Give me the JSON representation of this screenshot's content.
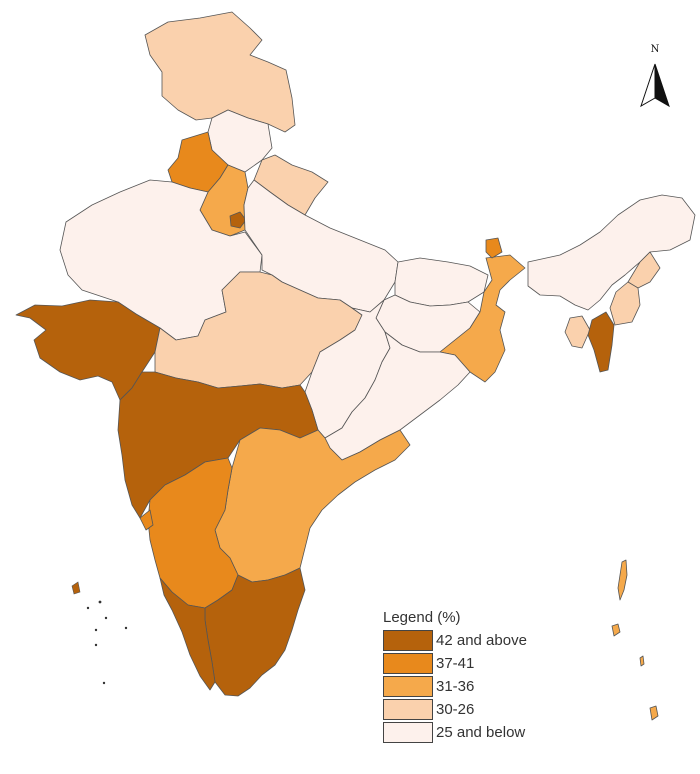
{
  "legend": {
    "title": "Legend (%)",
    "items": [
      {
        "label": "42 and above",
        "color": "#b5620c"
      },
      {
        "label": "37-41",
        "color": "#e8891c"
      },
      {
        "label": "31-36",
        "color": "#f5a94b"
      },
      {
        "label": "30-26",
        "color": "#fad1ad"
      },
      {
        "label": "25 and below",
        "color": "#fdf1ec"
      }
    ]
  },
  "north_arrow": {
    "letter": "N"
  },
  "regions": [
    {
      "name": "jammu-kashmir",
      "category": "30-26"
    },
    {
      "name": "himachal-pradesh",
      "category": "25 and below"
    },
    {
      "name": "punjab",
      "category": "37-41"
    },
    {
      "name": "uttarakhand",
      "category": "30-26"
    },
    {
      "name": "haryana",
      "category": "31-36"
    },
    {
      "name": "delhi",
      "category": "42 and above"
    },
    {
      "name": "rajasthan",
      "category": "25 and below"
    },
    {
      "name": "uttar-pradesh",
      "category": "25 and below"
    },
    {
      "name": "bihar",
      "category": "25 and below"
    },
    {
      "name": "sikkim",
      "category": "37-41"
    },
    {
      "name": "northeast",
      "category": "25 and below"
    },
    {
      "name": "nagaland",
      "category": "30-26"
    },
    {
      "name": "manipur",
      "category": "30-26"
    },
    {
      "name": "tripura",
      "category": "30-26"
    },
    {
      "name": "mizoram",
      "category": "42 and above"
    },
    {
      "name": "gujarat",
      "category": "42 and above"
    },
    {
      "name": "madhya-pradesh",
      "category": "30-26"
    },
    {
      "name": "chhattisgarh",
      "category": "25 and below"
    },
    {
      "name": "jharkhand",
      "category": "25 and below"
    },
    {
      "name": "west-bengal",
      "category": "31-36"
    },
    {
      "name": "odisha",
      "category": "25 and below"
    },
    {
      "name": "maharashtra",
      "category": "42 and above"
    },
    {
      "name": "telangana-andhra",
      "category": "31-36"
    },
    {
      "name": "karnataka",
      "category": "37-41"
    },
    {
      "name": "goa",
      "category": "37-41"
    },
    {
      "name": "tamil-nadu",
      "category": "42 and above"
    },
    {
      "name": "kerala",
      "category": "42 and above"
    },
    {
      "name": "andaman-nicobar",
      "category": "31-36"
    }
  ]
}
